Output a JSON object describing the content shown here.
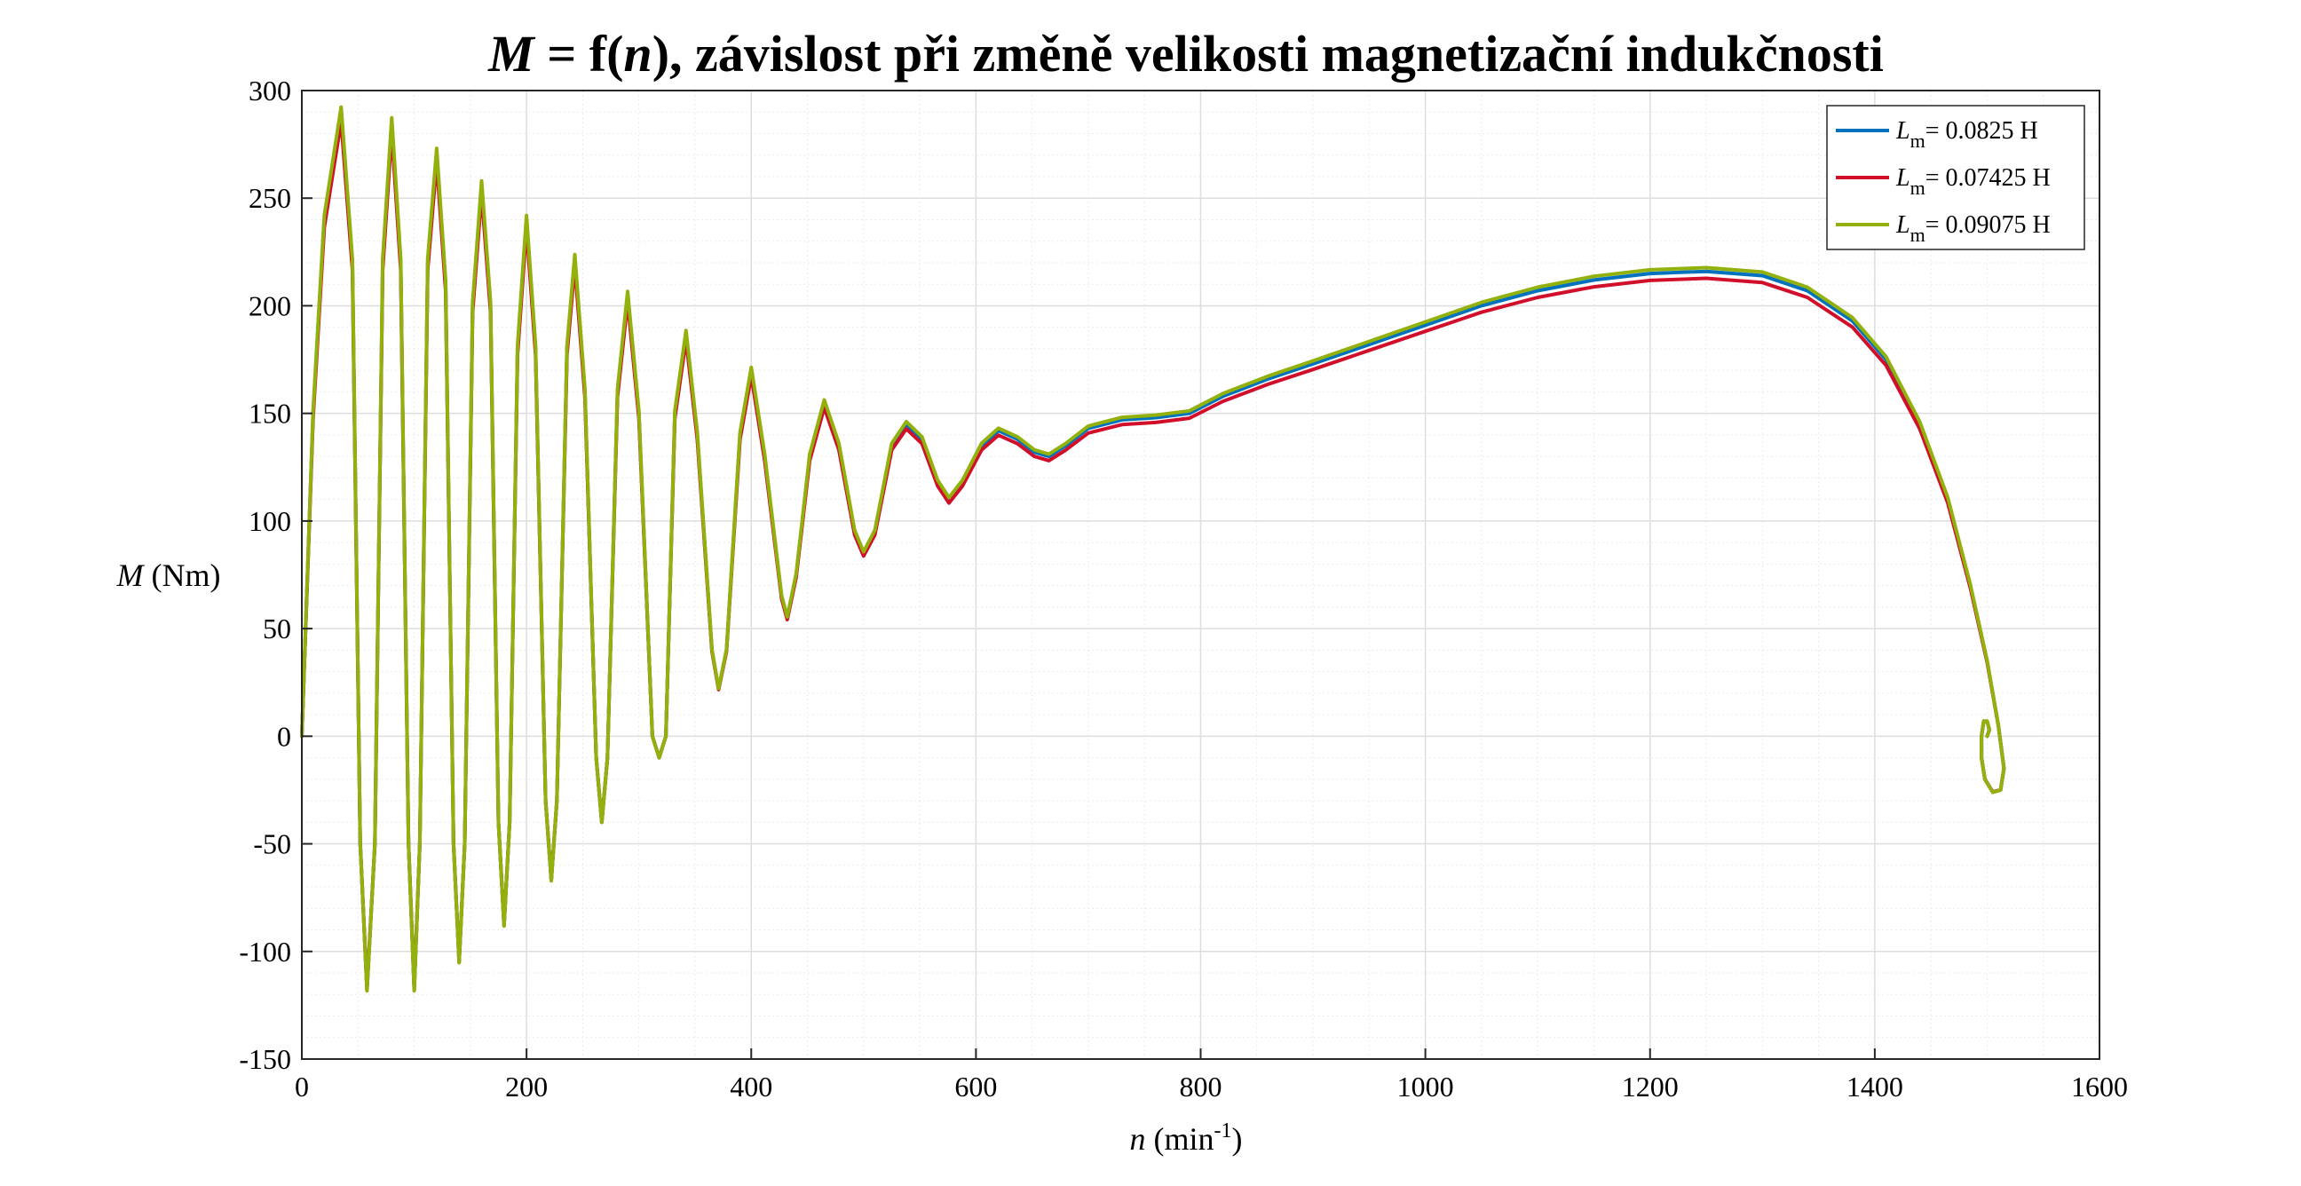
{
  "chart_data": {
    "type": "line",
    "title": {
      "parts": [
        {
          "text": "M",
          "style": "italic"
        },
        {
          "text": " = f(",
          "style": "normal"
        },
        {
          "text": "n",
          "style": "italic"
        },
        {
          "text": "), závislost při změně velikosti magnetizační indukčnosti",
          "style": "normal"
        }
      ]
    },
    "xlabel": {
      "var": "n",
      "unit_open": " (min",
      "unit_sup": "-1",
      "unit_close": ")"
    },
    "ylabel": {
      "var": "M",
      "unit": " (Nm)"
    },
    "xlim": [
      0,
      1600
    ],
    "ylim": [
      -150,
      300
    ],
    "xticks": [
      0,
      200,
      400,
      600,
      800,
      1000,
      1200,
      1400,
      1600
    ],
    "yticks": [
      -150,
      -100,
      -50,
      0,
      50,
      100,
      150,
      200,
      250,
      300
    ],
    "grid": true,
    "minor_grid": true,
    "legend_position": "top-right",
    "base_trajectory": [
      [
        0,
        0
      ],
      [
        10,
        150
      ],
      [
        20,
        240
      ],
      [
        35,
        290
      ],
      [
        45,
        220
      ],
      [
        52,
        -50
      ],
      [
        58,
        -118
      ],
      [
        65,
        -50
      ],
      [
        72,
        220
      ],
      [
        80,
        285
      ],
      [
        88,
        220
      ],
      [
        95,
        -50
      ],
      [
        100,
        -118
      ],
      [
        105,
        -50
      ],
      [
        112,
        220
      ],
      [
        120,
        271
      ],
      [
        128,
        210
      ],
      [
        135,
        -50
      ],
      [
        140,
        -105
      ],
      [
        145,
        -50
      ],
      [
        152,
        200
      ],
      [
        160,
        256
      ],
      [
        168,
        200
      ],
      [
        175,
        -40
      ],
      [
        180,
        -88
      ],
      [
        185,
        -40
      ],
      [
        192,
        180
      ],
      [
        200,
        240
      ],
      [
        208,
        180
      ],
      [
        217,
        -30
      ],
      [
        222,
        -67
      ],
      [
        227,
        -30
      ],
      [
        236,
        180
      ],
      [
        243,
        222
      ],
      [
        252,
        160
      ],
      [
        262,
        -10
      ],
      [
        267,
        -40
      ],
      [
        272,
        -10
      ],
      [
        281,
        160
      ],
      [
        290,
        205
      ],
      [
        300,
        150
      ],
      [
        312,
        0
      ],
      [
        318,
        -10
      ],
      [
        324,
        0
      ],
      [
        332,
        150
      ],
      [
        342,
        187
      ],
      [
        352,
        140
      ],
      [
        365,
        40
      ],
      [
        371,
        22
      ],
      [
        378,
        40
      ],
      [
        390,
        140
      ],
      [
        400,
        170
      ],
      [
        412,
        130
      ],
      [
        427,
        65
      ],
      [
        432,
        55
      ],
      [
        440,
        75
      ],
      [
        452,
        130
      ],
      [
        465,
        155
      ],
      [
        478,
        135
      ],
      [
        492,
        95
      ],
      [
        500,
        85
      ],
      [
        510,
        95
      ],
      [
        525,
        135
      ],
      [
        538,
        145
      ],
      [
        552,
        138
      ],
      [
        566,
        118
      ],
      [
        576,
        110
      ],
      [
        588,
        118
      ],
      [
        605,
        135
      ],
      [
        620,
        142
      ],
      [
        637,
        138
      ],
      [
        652,
        132
      ],
      [
        665,
        130
      ],
      [
        680,
        135
      ],
      [
        700,
        143
      ],
      [
        730,
        147
      ],
      [
        760,
        148
      ],
      [
        790,
        150
      ],
      [
        820,
        158
      ],
      [
        860,
        166
      ],
      [
        900,
        173
      ],
      [
        950,
        182
      ],
      [
        1000,
        191
      ],
      [
        1050,
        200
      ],
      [
        1100,
        207
      ],
      [
        1150,
        212
      ],
      [
        1200,
        215
      ],
      [
        1250,
        216
      ],
      [
        1300,
        214
      ],
      [
        1340,
        207
      ],
      [
        1380,
        193
      ],
      [
        1410,
        175
      ],
      [
        1440,
        145
      ],
      [
        1465,
        110
      ],
      [
        1485,
        70
      ],
      [
        1500,
        35
      ],
      [
        1510,
        5
      ],
      [
        1515,
        -15
      ],
      [
        1512,
        -25
      ],
      [
        1505,
        -26
      ],
      [
        1498,
        -20
      ],
      [
        1495,
        -10
      ],
      [
        1495,
        0
      ],
      [
        1497,
        7
      ],
      [
        1500,
        7
      ],
      [
        1502,
        3
      ],
      [
        1500,
        0
      ]
    ],
    "series": [
      {
        "name": "= 0.0825 H",
        "legend_var": "L",
        "legend_sub": "m",
        "color": "#0072BD",
        "amp_scale": 1.0
      },
      {
        "name": "= 0.07425 H",
        "legend_var": "L",
        "legend_sub": "m",
        "color": "#D10F2A",
        "amp_scale": 0.985
      },
      {
        "name": "= 0.09075 H",
        "legend_var": "L",
        "legend_sub": "m",
        "color": "#93B10C",
        "amp_scale": 1.008
      }
    ]
  }
}
